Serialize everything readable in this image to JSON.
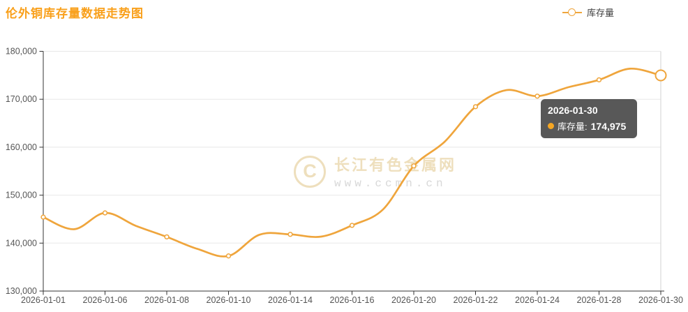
{
  "chart_data": {
    "type": "line",
    "title": "伦外铜库存量数据走势图",
    "x": [
      "2026-01-01",
      "2026-01-02",
      "2026-01-06",
      "2026-01-07",
      "2026-01-08",
      "2026-01-09",
      "2026-01-10",
      "2026-01-13",
      "2026-01-14",
      "2026-01-15",
      "2026-01-16",
      "2026-01-19",
      "2026-01-20",
      "2026-01-21",
      "2026-01-22",
      "2026-01-23",
      "2026-01-24",
      "2026-01-27",
      "2026-01-28",
      "2026-01-29",
      "2026-01-30"
    ],
    "series": [
      {
        "name": "库存量",
        "values": [
          145425,
          142900,
          146300,
          143600,
          141300,
          138775,
          137325,
          141750,
          141825,
          141350,
          143700,
          147000,
          156100,
          161150,
          168450,
          171900,
          170650,
          172500,
          174050,
          176375,
          174975
        ]
      }
    ],
    "ylim": [
      130000,
      180000
    ],
    "y_ticks": [
      "130,000",
      "140,000",
      "150,000",
      "160,000",
      "170,000",
      "180,000"
    ],
    "x_tick_labels": [
      "2026-01-01",
      "2026-01-06",
      "2026-01-08",
      "2026-01-10",
      "2026-01-14",
      "2026-01-16",
      "2026-01-20",
      "2026-01-22",
      "2026-01-24",
      "2026-01-28",
      "2026-01-30"
    ],
    "label_every": 2,
    "grid": true,
    "smooth": true,
    "legend": {
      "position": "top-right",
      "entries": [
        "库存量"
      ]
    },
    "highlighted_point": {
      "x": "2026-01-30",
      "value": 174975
    }
  },
  "tooltip": {
    "date": "2026-01-30",
    "series_label": "库存量:",
    "value": "174,975"
  },
  "watermark": {
    "logo_letter": "C",
    "site_name": "长江有色金属网",
    "site_url": "www.ccmn.cn"
  },
  "theme": {
    "title_color": "#f9a01b",
    "line_color": "#efa53c",
    "marker_fill": "#ffffff",
    "axis_line_color": "#333333",
    "axis_label_color": "#555555",
    "grid_color": "#e8e8e8",
    "pointer_line_color": "#d9d9d9",
    "tooltip_bg": "rgba(70,70,70,0.9)",
    "tooltip_text": "#ffffff",
    "tooltip_dot": "#f5a623",
    "legend_text": "#404040",
    "watermark_cream": "#eedfbd",
    "watermark_gray": "#d8d8d8"
  }
}
